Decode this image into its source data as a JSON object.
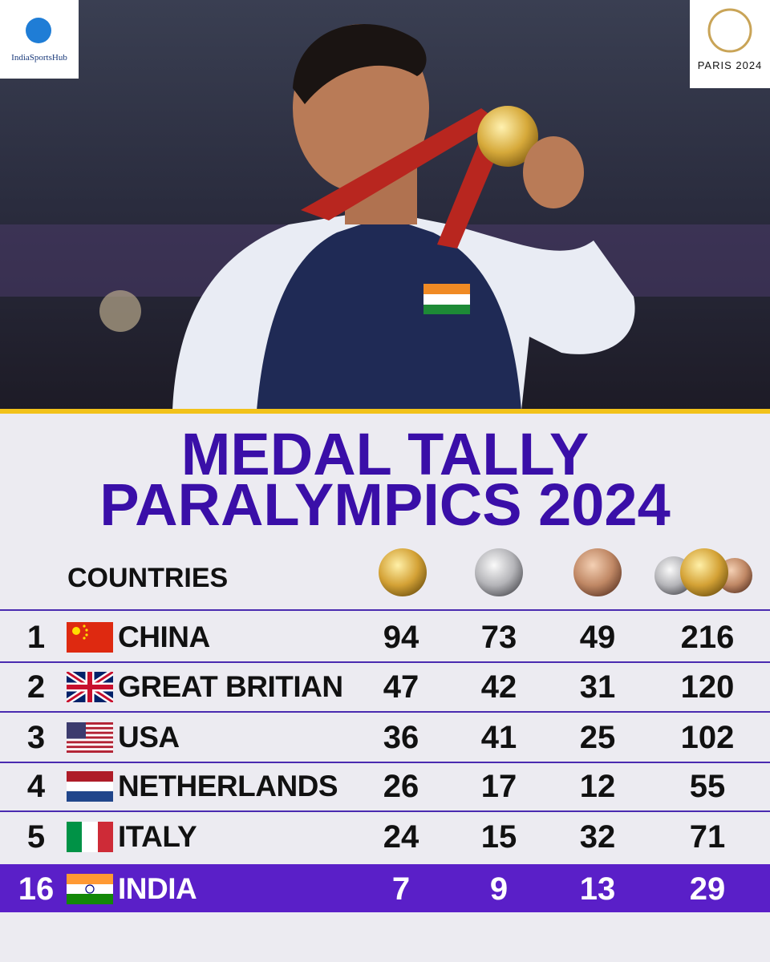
{
  "logos": {
    "left": "IndiaSportsHub",
    "right": "PARIS 2024"
  },
  "title": [
    "MEDAL TALLY",
    "PARALYMPICS 2024"
  ],
  "table": {
    "header": "COUNTRIES",
    "rows": [
      [
        1,
        "CHINA",
        94,
        73,
        49,
        216
      ],
      [
        2,
        "GREAT BRITIAN",
        47,
        42,
        31,
        120
      ],
      [
        3,
        "USA",
        36,
        41,
        25,
        102
      ],
      [
        4,
        "NETHERLANDS",
        26,
        17,
        12,
        55
      ],
      [
        5,
        "ITALY",
        24,
        15,
        32,
        71
      ],
      [
        16,
        "INDIA",
        7,
        9,
        13,
        29
      ]
    ]
  }
}
